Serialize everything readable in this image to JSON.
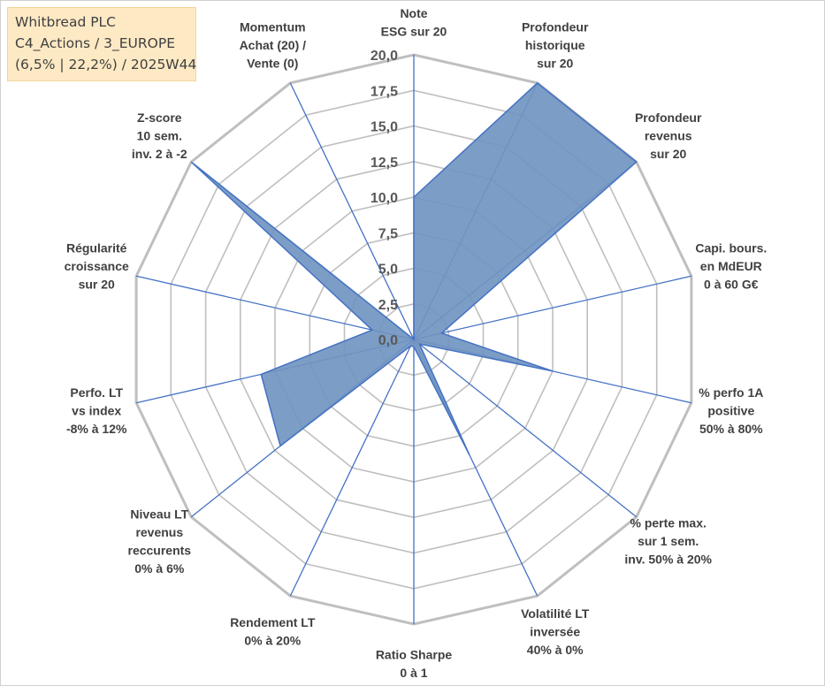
{
  "info": {
    "line1": "Whitbread PLC",
    "line2": "C4_Actions / 3_EUROPE",
    "line3": "(6,5% | 22,2%) / 2025W44"
  },
  "chart_data": {
    "type": "radar",
    "series": [
      {
        "color": "#7195c0",
        "edge": "#4472c4",
        "values": [
          10.0,
          20.0,
          20.0,
          2.0,
          10.0,
          0.5,
          9.0,
          0.5,
          0.5,
          12.0,
          11.0,
          3.0,
          20.0,
          0.0
        ]
      }
    ],
    "axes": [
      [
        "Note",
        "ESG sur 20"
      ],
      [
        "Profondeur",
        "historique",
        "sur 20"
      ],
      [
        "Profondeur",
        "revenus",
        "sur 20"
      ],
      [
        "Capi. bours.",
        "en MdEUR",
        "0 à 60 G€"
      ],
      [
        "% perfo 1A",
        "positive",
        "50% à 80%"
      ],
      [
        "% perte max.",
        "sur 1 sem.",
        "inv. 50% à 20%"
      ],
      [
        "Volatilité LT",
        "inversée",
        "40% à 0%"
      ],
      [
        "Ratio Sharpe",
        "0 à 1"
      ],
      [
        "Rendement LT",
        "0% à 20%"
      ],
      [
        "Niveau LT",
        "revenus",
        "reccurents",
        "0% à 6%"
      ],
      [
        "Perfo. LT",
        "vs index",
        "-8% à 12%"
      ],
      [
        "Régularité",
        "croissance",
        "sur 20"
      ],
      [
        "Z-score",
        "10 sem.",
        "inv. 2 à -2"
      ],
      [
        "Momentum",
        "Achat (20) /",
        "Vente (0)"
      ]
    ],
    "rmin": 0,
    "rmax": 20,
    "tick_step": 2.5,
    "tick_labels": [
      "0,0",
      "2,5",
      "5,0",
      "7,5",
      "10,0",
      "12,5",
      "15,0",
      "17,5",
      "20,0"
    ],
    "grid": true,
    "grid_color": "#bfbfbf",
    "spoke_color": "#4472c4"
  }
}
